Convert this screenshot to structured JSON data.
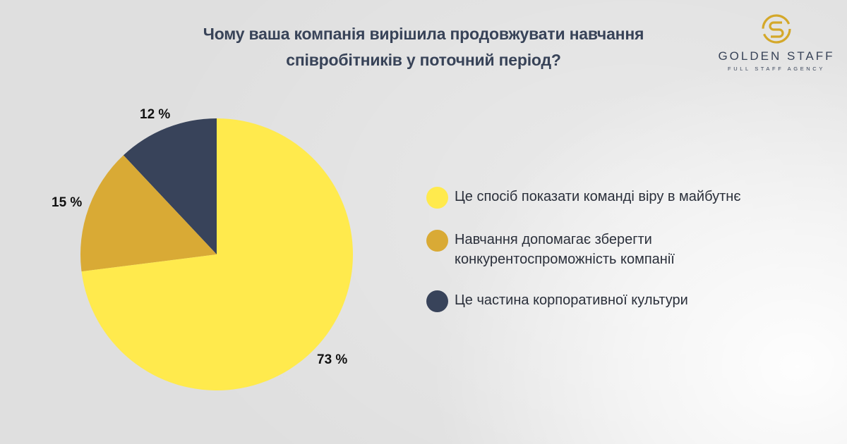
{
  "title": {
    "line1": "Чому ваша компанія вирішила продовжувати навчання",
    "line2": "співробітників у поточний період?"
  },
  "logo": {
    "icon": "golden-staff-s-ring-icon",
    "name": "GOLDEN STAFF",
    "tagline": "FULL STAFF AGENCY",
    "gold_color": "#d4a82a",
    "text_color": "#384358"
  },
  "chart_data": {
    "type": "pie",
    "title": "Чому ваша компанія вирішила продовжувати навчання співробітників у поточний період?",
    "categories": [
      "Це спосіб показати команді віру в майбутнє",
      "Навчання допомагає зберегти конкурентоспроможність компанії",
      "Це частина корпоративної культури"
    ],
    "values": [
      73,
      15,
      12
    ],
    "labels": [
      "73 %",
      "15 %",
      "12 %"
    ],
    "colors": [
      "#ffea4d",
      "#d9aa35",
      "#38435a"
    ],
    "legend_position": "right",
    "start_angle": "12 o'clock, counterclockwise for small slices"
  },
  "legend": [
    {
      "lines": [
        "Це спосіб показати команді віру в майбутнє"
      ],
      "color": "#ffea4d"
    },
    {
      "lines": [
        "Навчання допомагає зберегти",
        "конкурентоспроможність компанії"
      ],
      "color": "#d9aa35"
    },
    {
      "lines": [
        "Це частина корпоративної культури"
      ],
      "color": "#38435a"
    }
  ]
}
